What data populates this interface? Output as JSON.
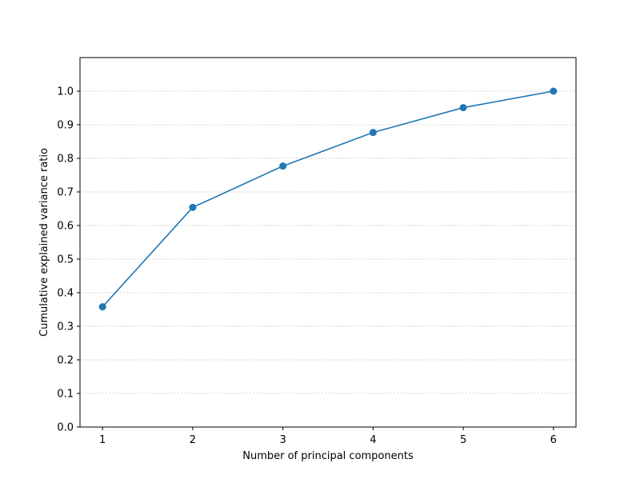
{
  "chart_data": {
    "type": "line",
    "title": "",
    "xlabel": "Number of principal components",
    "ylabel": "Cumulative explained variance ratio",
    "x": [
      1,
      2,
      3,
      4,
      5,
      6
    ],
    "series": [
      {
        "values": [
          0.358,
          0.654,
          0.777,
          0.877,
          0.951,
          1.0
        ],
        "color": "#1f77b4",
        "marker": "circle"
      }
    ],
    "xlim": [
      0.75,
      6.25
    ],
    "ylim": [
      0.0,
      1.1
    ],
    "xticks": [
      "1",
      "2",
      "3",
      "4",
      "5",
      "6"
    ],
    "yticks": [
      "0.0",
      "0.1",
      "0.2",
      "0.3",
      "0.4",
      "0.5",
      "0.6",
      "0.7",
      "0.8",
      "0.9",
      "1.0"
    ],
    "grid": {
      "axis": "y",
      "style": "dashed",
      "color": "#b0b0b0"
    }
  }
}
